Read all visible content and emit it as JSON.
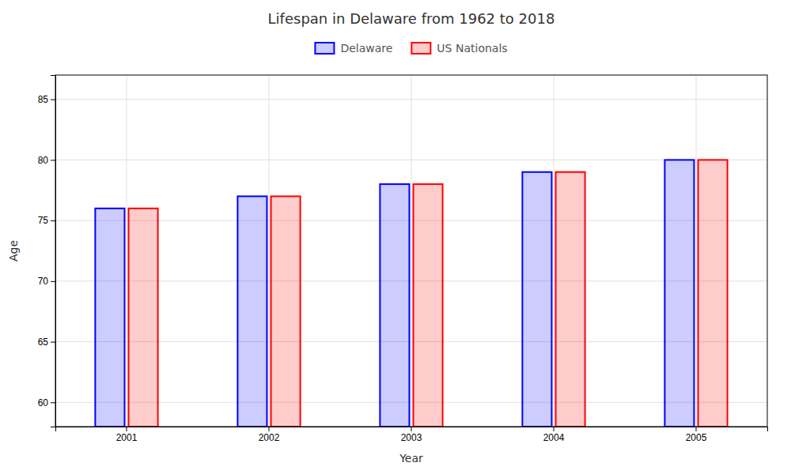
{
  "chart_data": {
    "type": "bar",
    "title": "Lifespan in Delaware from 1962 to 2018",
    "xlabel": "Year",
    "ylabel": "Age",
    "categories": [
      "2001",
      "2002",
      "2003",
      "2004",
      "2005"
    ],
    "series": [
      {
        "name": "Delaware",
        "color": "#0000ff",
        "values": [
          76,
          77,
          78,
          79,
          80
        ]
      },
      {
        "name": "US Nationals",
        "color": "#ff0000",
        "values": [
          76,
          77,
          78,
          79,
          80
        ]
      }
    ],
    "ylim": [
      58,
      87
    ],
    "yticks": [
      60,
      65,
      70,
      75,
      80,
      85
    ],
    "grid": true,
    "legend": "top"
  }
}
